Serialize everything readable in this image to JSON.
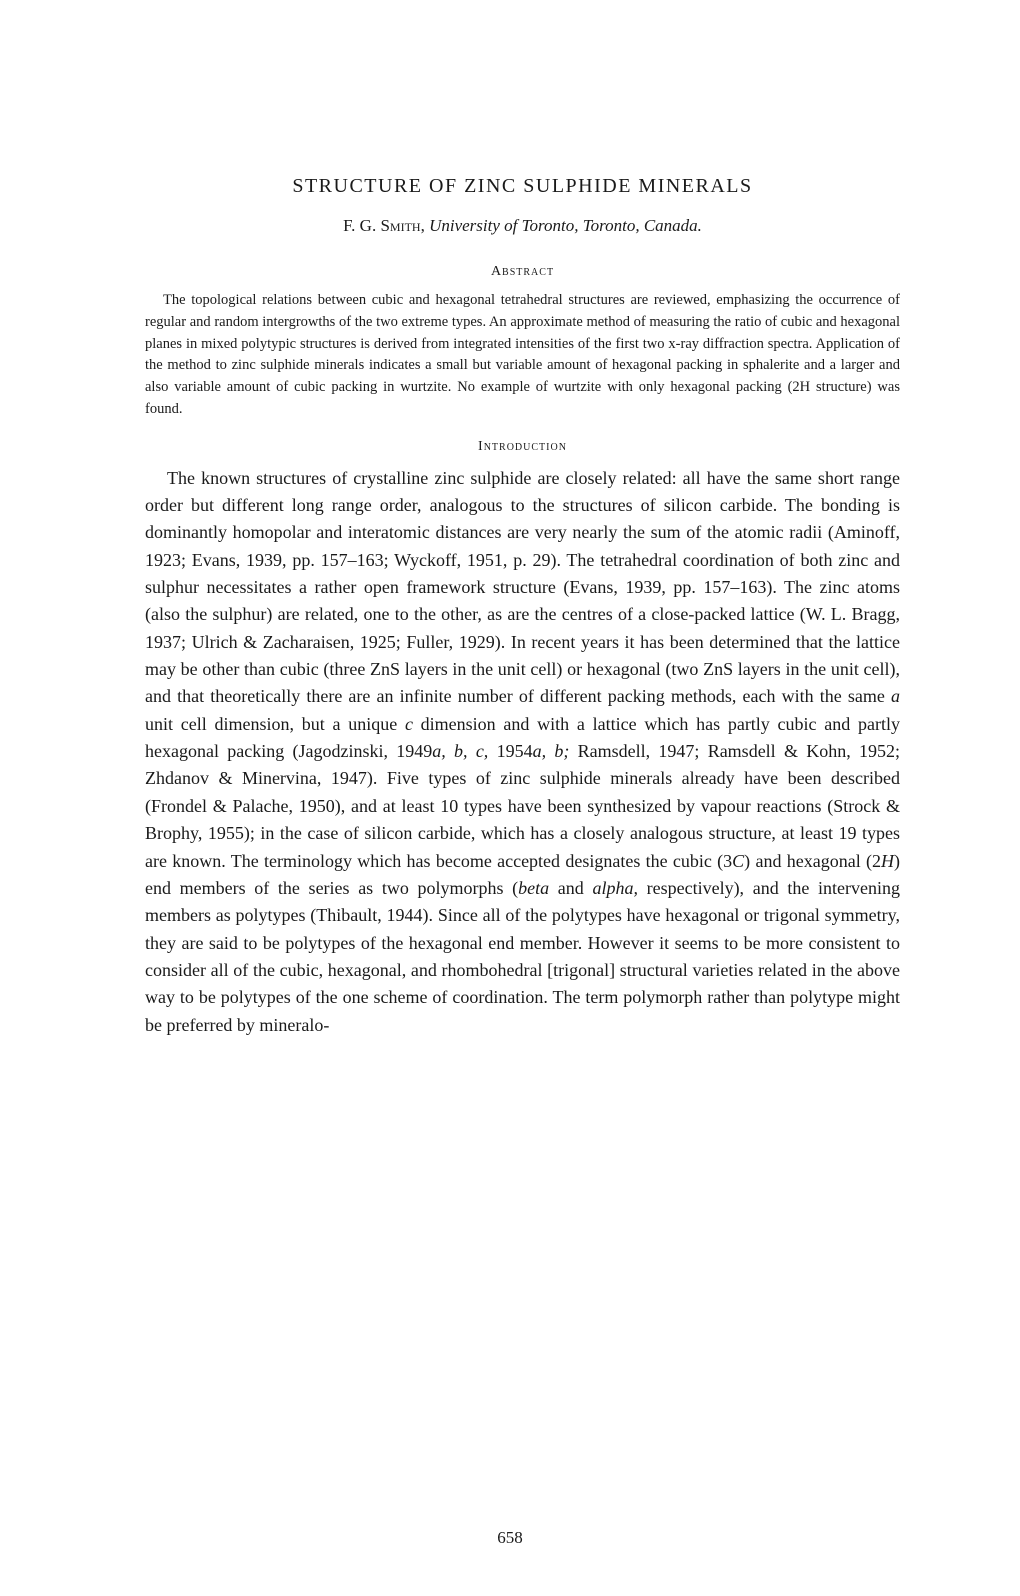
{
  "title": "STRUCTURE OF ZINC SULPHIDE MINERALS",
  "author": {
    "name": "F. G. Smith,",
    "affiliation": "University of Toronto, Toronto, Canada."
  },
  "sections": {
    "abstract": {
      "heading": "Abstract",
      "text": "The topological relations between cubic and hexagonal tetrahedral structures are reviewed, emphasizing the occurrence of regular and random intergrowths of the two extreme types. An approximate method of measuring the ratio of cubic and hexagonal planes in mixed polytypic structures is derived from integrated intensities of the first two x-ray diffraction spectra. Application of the method to zinc sulphide minerals indicates a small but variable amount of hexagonal packing in sphalerite and a larger and also variable amount of cubic packing in wurtzite. No example of wurtzite with only hexagonal packing (2H structure) was found."
    },
    "introduction": {
      "heading": "Introduction",
      "text_parts": [
        "The known structures of crystalline zinc sulphide are closely related: all have the same short range order but different long range order, analogous to the structures of silicon carbide. The bonding is dominantly homopolar and interatomic distances are very nearly the sum of the atomic radii (Aminoff, 1923; Evans, 1939, pp. 157–163; Wyckoff, 1951, p. 29). The tetrahedral coordination of both zinc and sulphur necessitates a rather open framework structure (Evans, 1939, pp. 157–163). The zinc atoms (also the sulphur) are related, one to the other, as are the centres of a close-packed lattice (W. L. Bragg, 1937; Ulrich & Zacharaisen, 1925; Fuller, 1929). In recent years it has been determined that the lattice may be other than cubic (three ZnS layers in the unit cell) or hexagonal (two ZnS layers in the unit cell), and that theoretically there are an infinite number of different packing methods, each with the same ",
        "a",
        " unit cell dimension, but a unique ",
        "c",
        " dimension and with a lattice which has partly cubic and partly hexagonal packing (Jagodzinski, 1949",
        "a, b, c,",
        " 1954",
        "a, b;",
        " Ramsdell, 1947; Ramsdell & Kohn, 1952; Zhdanov & Minervina, 1947). Five types of zinc sulphide minerals already have been described (Frondel & Palache, 1950), and at least 10 types have been synthesized by vapour reactions (Strock & Brophy, 1955); in the case of silicon carbide, which has a closely analogous structure, at least 19 types are known. The terminology which has become accepted designates the cubic (3",
        "C",
        ") and hexagonal (2",
        "H",
        ") end members of the series as two polymorphs (",
        "beta",
        " and ",
        "alpha,",
        " respectively), and the intervening members as polytypes (Thibault, 1944). Since all of the polytypes have hexagonal or trigonal symmetry, they are said to be polytypes of the hexagonal end member. However it seems to be more consistent to consider all of the cubic, hexagonal, and rhombohedral [trigonal] structural varieties related in the above way to be polytypes of the one scheme of coordination. The term polymorph rather than polytype might be preferred by mineralo-"
      ]
    }
  },
  "page_number": "658"
}
